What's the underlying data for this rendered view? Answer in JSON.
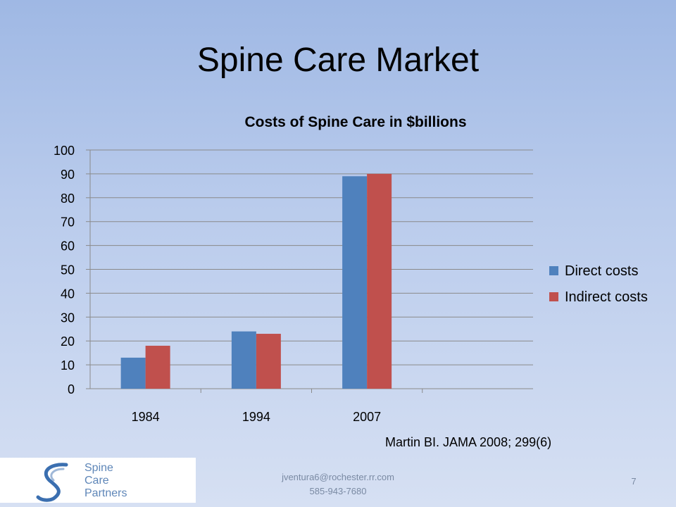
{
  "slide": {
    "title": "Spine Care Market",
    "citation": "Martin BI.  JAMA 2008; 299(6)",
    "footer_email": "jventura6@rochester.rr.com",
    "footer_phone": "585-943-7680",
    "page_number": "7"
  },
  "logo": {
    "lines": [
      "Spine",
      "Care",
      "Partners"
    ]
  },
  "chart_data": {
    "type": "bar",
    "title": "Costs of Spine Care in $billions",
    "categories": [
      "1984",
      "1994",
      "2007"
    ],
    "series": [
      {
        "name": "Direct costs",
        "values": [
          13,
          24,
          89
        ],
        "color": "#4f81bd"
      },
      {
        "name": "Indirect costs",
        "values": [
          18,
          23,
          90
        ],
        "color": "#c0504d"
      }
    ],
    "ylim": [
      0,
      100
    ],
    "yticks": [
      0,
      10,
      20,
      30,
      40,
      50,
      60,
      70,
      80,
      90,
      100
    ],
    "grid": true,
    "legend_position": "right"
  }
}
